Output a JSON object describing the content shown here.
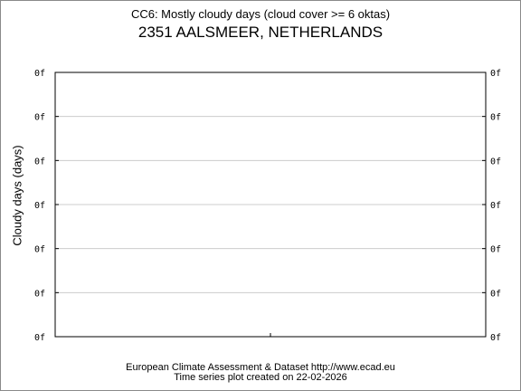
{
  "header": {
    "title": "CC6: Mostly cloudy days (cloud cover >= 6 oktas)",
    "subtitle": "2351 AALSMEER, NETHERLANDS"
  },
  "footer": {
    "line1": "European Climate Assessment & Dataset  http://www.ecad.eu",
    "line2": "Time series plot created on 22-02-2026"
  },
  "chart_data": {
    "type": "line",
    "title": "CC6: Mostly cloudy days (cloud cover >= 6 oktas)",
    "subtitle": "2351 AALSMEER, NETHERLANDS",
    "ylabel": "Cloudy days (days)",
    "xlabel": "",
    "y_tick_labels": [
      "0f",
      "0f",
      "0f",
      "0f",
      "0f",
      "0f",
      "0f"
    ],
    "y_tick_labels_right": [
      "0f",
      "0f",
      "0f",
      "0f",
      "0f",
      "0f",
      "0f"
    ],
    "x_tick_labels": [],
    "series": [],
    "grid": true
  }
}
